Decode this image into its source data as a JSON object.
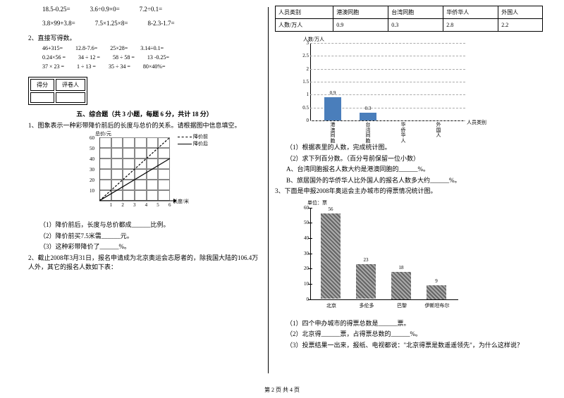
{
  "left": {
    "expr_set1": [
      "18.5-0.25=",
      "3.6÷0.9×0=",
      "7.2÷0.1="
    ],
    "expr_set2": [
      "3.8×99+3.8=",
      "7.5×1.25×8=",
      "8-2.3-1.7="
    ],
    "q2_label": "2、直接写得数。",
    "expr_rows": [
      [
        "46+315=",
        "12.8-7.6=",
        "25×28=",
        "3.14÷0.1="
      ],
      [
        "0.24×56 =",
        "34 ÷ 12 =",
        "58 ÷ 58 =",
        "13 -0.25="
      ],
      [
        "37 × 23 =",
        "1 ÷ 13 =",
        "35 ÷ 34 =",
        "80×40%="
      ]
    ],
    "score_cells": [
      "得分",
      "评卷人"
    ],
    "section5": "五、综合题（共 3 小题，每题 6 分，共计 18 分）",
    "q1": "1、图象表示一种彩带降价前后的长度与总价的关系。请根据图中信息填空。",
    "chart1": {
      "y_title": "总价/元",
      "x_title": "长度/米",
      "legend": [
        "降价前",
        "降价后"
      ],
      "yticks": [
        "10",
        "20",
        "30",
        "40",
        "50",
        "60"
      ],
      "xticks": [
        "1",
        "2",
        "3",
        "4",
        "5",
        "6"
      ],
      "grid_cols": 6,
      "grid_rows": 6
    },
    "q1_sub": [
      "（1）降价前后，长度与总价都成______比例。",
      "（2）降价前买7.5米需______元。",
      "（3）这种彩带降价了______%。"
    ],
    "q2": "2、截止2008年3月31日，报名申请成为北京奥运会志愿者的，除我国大陆的106.4万人外，其它的报名人数如下表："
  },
  "right": {
    "table": {
      "headers": [
        "人员类别",
        "港澳同胞",
        "台湾同胞",
        "华侨华人",
        "外国人"
      ],
      "row_label": "人数/万人",
      "row": [
        "0.9",
        "0.3",
        "2.8",
        "2.2"
      ]
    },
    "chart2": {
      "ylabel": "人数/万人",
      "xlabel": "人员类别",
      "yticks": [
        0,
        0.5,
        1,
        1.5,
        2,
        2.5,
        3
      ],
      "categories": [
        "港澳同胞",
        "台湾同胞",
        "华侨华人",
        "外国人"
      ],
      "values": [
        0.9,
        0.3,
        null,
        null
      ],
      "shown_labels": [
        "0.9",
        "0.3",
        "",
        ""
      ],
      "bar_color": "#4a7ebb",
      "ymax": 3
    },
    "q2_sub": [
      "（1）根据表里的人数，完成统计图。",
      "（2）求下列百分数。（百分号前保留一位小数）",
      "A、台湾同胞报名人数大约是港澳同胞的______%。",
      "B、旅居国外的华侨华人比外国人的报名人数多大约______%。"
    ],
    "q3": "3、下面是申报2008年奥运会主办城市的得票情况统计图。",
    "chart3": {
      "ylabel": "单位：票",
      "yticks": [
        0,
        10,
        20,
        30,
        40,
        50,
        60
      ],
      "categories": [
        "北京",
        "多伦多",
        "巴黎",
        "伊斯坦布尔"
      ],
      "values": [
        56,
        23,
        18,
        9
      ],
      "ymax": 60
    },
    "q3_sub": [
      "（1）四个申办城市的得票总数是______票。",
      "（2）北京得______票，占得票总数的______%。",
      "（3）投票结果一出来，报纸、电视都说：\"北京得票是数遥遥领先\"，为什么这样说？"
    ]
  },
  "footer": "第 2 页 共 4 页"
}
